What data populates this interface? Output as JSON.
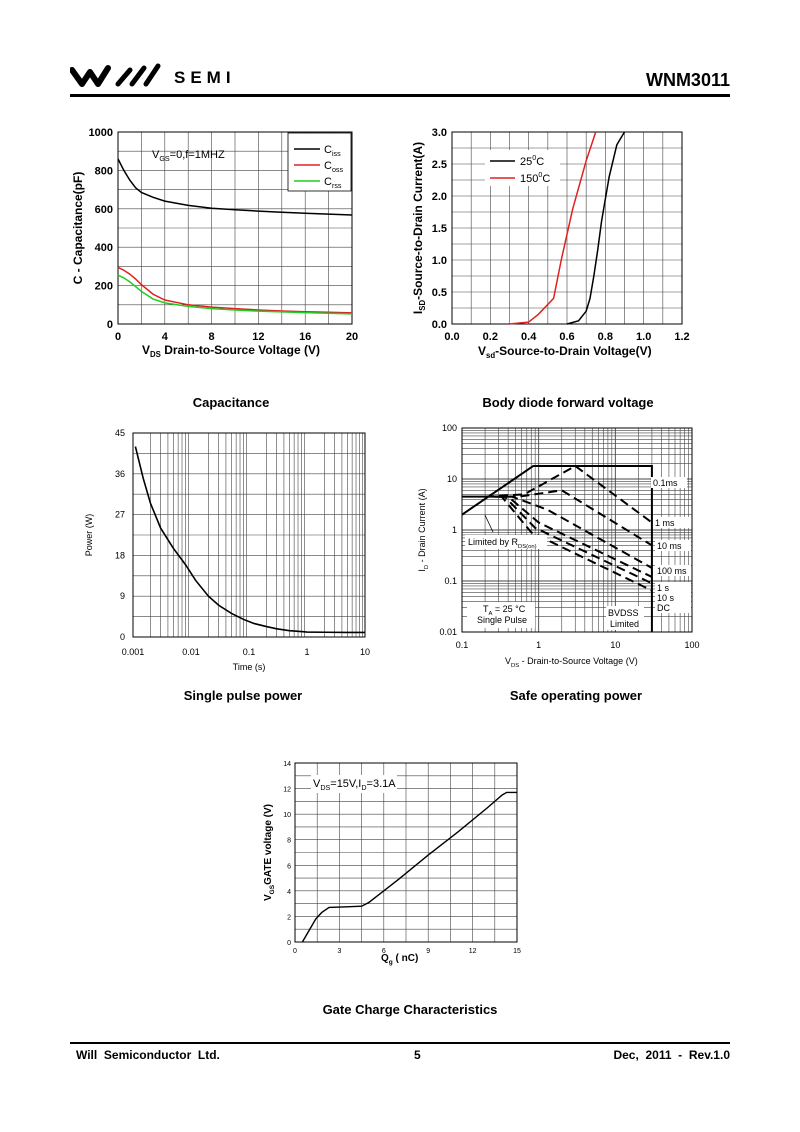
{
  "header": {
    "logo_text": "SEMI",
    "part_number": "WNM3011"
  },
  "footer": {
    "company": "Will  Semiconductor  Ltd.",
    "page": "5",
    "date_rev": "Dec,  2011  -  Rev.1.0"
  },
  "chart_data": [
    {
      "id": "capacitance",
      "type": "line",
      "caption": "Capacitance",
      "xlabel": "VDS Drain-to-Source Voltage (V)",
      "xlabel_main": "V",
      "xlabel_sub": "DS",
      "xlabel_rest": " Drain-to-Source Voltage (V)",
      "ylabel": "C - Capacitance(pF)",
      "xlim": [
        0,
        20
      ],
      "ylim": [
        0,
        1000
      ],
      "xticks": [
        0,
        4,
        8,
        12,
        16,
        20
      ],
      "yticks": [
        0,
        200,
        400,
        600,
        800,
        1000
      ],
      "annotation": "VGS=0,f=1MHZ",
      "annotation_main": "V",
      "annotation_sub": "GS",
      "annotation_rest": "=0,f=1MHZ",
      "series": [
        {
          "name": "Ciss",
          "name_main": "C",
          "name_sub": "iss",
          "color": "#000000",
          "x": [
            0,
            0.5,
            1,
            1.5,
            2,
            3,
            4,
            6,
            8,
            10,
            12,
            14,
            16,
            18,
            20
          ],
          "y": [
            860,
            800,
            750,
            710,
            685,
            660,
            640,
            618,
            603,
            595,
            588,
            582,
            577,
            572,
            568
          ]
        },
        {
          "name": "Coss",
          "name_main": "C",
          "name_sub": "oss",
          "color": "#e02020",
          "x": [
            0,
            0.5,
            1,
            1.5,
            2,
            3,
            4,
            6,
            8,
            10,
            12,
            14,
            16,
            18,
            20
          ],
          "y": [
            295,
            280,
            260,
            235,
            205,
            155,
            125,
            100,
            88,
            80,
            73,
            68,
            64,
            61,
            58
          ]
        },
        {
          "name": "Crss",
          "name_main": "C",
          "name_sub": "rss",
          "color": "#22cc22",
          "x": [
            0,
            0.5,
            1,
            1.5,
            2,
            3,
            4,
            6,
            8,
            10,
            12,
            14,
            16,
            18,
            20
          ],
          "y": [
            255,
            240,
            220,
            195,
            170,
            130,
            110,
            92,
            80,
            73,
            67,
            63,
            59,
            56,
            53
          ]
        }
      ]
    },
    {
      "id": "body-diode",
      "type": "line",
      "caption": "Body diode forward voltage",
      "xlabel": "Vsd-Source-to-Drain Voltage(V)",
      "xlabel_main": "V",
      "xlabel_sub": "sd",
      "xlabel_rest": "-Source-to-Drain Voltage(V)",
      "ylabel": "ISD-Source-to-Drain Current(A)",
      "ylabel_main": "I",
      "ylabel_sub": "SD",
      "ylabel_rest": "-Source-to-Drain Current(A)",
      "xlim": [
        0,
        1.2
      ],
      "ylim": [
        0,
        3.0
      ],
      "xticks": [
        0.0,
        0.2,
        0.4,
        0.6,
        0.8,
        1.0,
        1.2
      ],
      "xtick_labels": [
        "0.0",
        "0.2",
        "0.4",
        "0.6",
        "0.8",
        "1.0",
        "1.2"
      ],
      "yticks": [
        0.0,
        0.5,
        1.0,
        1.5,
        2.0,
        2.5,
        3.0
      ],
      "ytick_labels": [
        "0.0",
        "0.5",
        "1.0",
        "1.5",
        "2.0",
        "2.5",
        "3.0"
      ],
      "series": [
        {
          "name": "25°C",
          "name_main": "25",
          "name_sup": "0",
          "name_rest": "C",
          "color": "#000000",
          "x": [
            0.6,
            0.66,
            0.7,
            0.72,
            0.74,
            0.76,
            0.78,
            0.82,
            0.86,
            0.9
          ],
          "y": [
            0,
            0.05,
            0.2,
            0.4,
            0.75,
            1.15,
            1.6,
            2.3,
            2.8,
            3.0
          ]
        },
        {
          "name": "150°C",
          "name_main": "150",
          "name_sup": "0",
          "name_rest": "C",
          "color": "#e02020",
          "x": [
            0.3,
            0.4,
            0.45,
            0.53,
            0.57,
            0.63,
            0.7,
            0.75
          ],
          "y": [
            0,
            0.03,
            0.15,
            0.4,
            1.0,
            1.8,
            2.55,
            3.0
          ]
        }
      ]
    },
    {
      "id": "single-pulse-power",
      "type": "line",
      "caption": "Single pulse power",
      "xlabel": "Time (s)",
      "ylabel": "Power  (W)",
      "xscale": "log",
      "xlim": [
        0.001,
        10
      ],
      "ylim": [
        0,
        45
      ],
      "xticks": [
        0.001,
        0.01,
        0.1,
        1,
        10
      ],
      "xtick_labels": [
        "0.001",
        "0.01",
        "0.1",
        "1",
        "10"
      ],
      "yticks": [
        0,
        9,
        18,
        27,
        36,
        45
      ],
      "series": [
        {
          "name": "Power",
          "color": "#000000",
          "x": [
            0.0011,
            0.0015,
            0.002,
            0.003,
            0.005,
            0.008,
            0.012,
            0.02,
            0.03,
            0.05,
            0.08,
            0.12,
            0.2,
            0.3,
            0.5,
            0.8,
            1,
            2,
            5,
            10
          ],
          "y": [
            42,
            35,
            29.5,
            24,
            19.5,
            16,
            12.5,
            9,
            7,
            5.2,
            3.9,
            3.0,
            2.3,
            1.8,
            1.4,
            1.2,
            1.1,
            1.05,
            1.0,
            1.0
          ]
        }
      ]
    },
    {
      "id": "safe-operating-area",
      "type": "line",
      "caption": "Safe operating power",
      "xlabel": "VDS - Drain-to-Source Voltage (V)",
      "xlabel_main": "V",
      "xlabel_sub": "DS",
      "xlabel_rest": " - Drain-to-Source Voltage (V)",
      "ylabel": "ID - Drain Current (A)",
      "ylabel_main": "I",
      "ylabel_sub": "D",
      "ylabel_rest": " - Drain Current (A)",
      "xscale": "log",
      "yscale": "log",
      "xlim": [
        0.1,
        100
      ],
      "ylim": [
        0.01,
        100
      ],
      "xticks": [
        0.1,
        1,
        10,
        100
      ],
      "xtick_labels": [
        "0.1",
        "1",
        "10",
        "100"
      ],
      "yticks": [
        0.01,
        0.1,
        1,
        10,
        100
      ],
      "ytick_labels": [
        "0.01",
        "0.1",
        "1",
        "10",
        "100"
      ],
      "annotations": {
        "limited_by": "Limited by RDS(on)",
        "limited_main": "Limited by R",
        "limited_sub": "DS(on)",
        "ta_main": "T",
        "ta_sub": "A",
        "ta_rest": " = 25 °C",
        "ta": "TA = 25 °C",
        "single_pulse": "Single Pulse",
        "bvdss": "BVDSS",
        "bvdss_limited": "Limited"
      },
      "series": [
        {
          "name": "0.1ms",
          "style": "solid",
          "x": [
            0.1,
            0.85,
            30,
            30
          ],
          "y": [
            2,
            18,
            18,
            0.01
          ]
        },
        {
          "name": "1 ms",
          "style": "dashed",
          "x": [
            0.2,
            0.65,
            3.0,
            30
          ],
          "y": [
            4.5,
            5.0,
            18.0,
            1.4
          ]
        },
        {
          "name": "10 ms",
          "style": "dashed",
          "x": [
            0.25,
            0.55,
            2.0,
            30
          ],
          "y": [
            4.5,
            4.5,
            6.0,
            0.5
          ]
        },
        {
          "name": "100 ms",
          "style": "dashed",
          "x": [
            0.27,
            0.45,
            1.3,
            30
          ],
          "y": [
            4.5,
            4.5,
            2.5,
            0.18
          ]
        },
        {
          "name": "1 s",
          "style": "dashed",
          "x": [
            0.3,
            0.4,
            1.0,
            30
          ],
          "y": [
            4.5,
            4.5,
            1.4,
            0.12
          ]
        },
        {
          "name": "10 s",
          "style": "dashed",
          "x": [
            0.3,
            0.36,
            0.9,
            30
          ],
          "y": [
            4.5,
            4.5,
            1.1,
            0.09
          ]
        },
        {
          "name": "DC",
          "style": "dashed",
          "x": [
            0.3,
            0.33,
            0.8,
            30
          ],
          "y": [
            4.5,
            4.5,
            0.9,
            0.065
          ]
        },
        {
          "name": "Limited by RDS(on)",
          "style": "solid",
          "x": [
            0.1,
            0.32
          ],
          "y": [
            4.5,
            4.5
          ]
        }
      ]
    },
    {
      "id": "gate-charge",
      "type": "line",
      "caption": "Gate Charge Characteristics",
      "xlabel": "Qg ( nC)",
      "xlabel_main": "Q",
      "xlabel_sub": "g",
      "xlabel_rest": " (  nC)",
      "ylabel": "VGSGATE voltage (V)",
      "ylabel_main": "V",
      "ylabel_sub": "GS",
      "ylabel_rest": "GATE voltage (V)",
      "xlim": [
        0,
        15
      ],
      "ylim": [
        0,
        14
      ],
      "xticks": [
        0,
        3,
        6,
        9,
        12,
        15
      ],
      "yticks": [
        0,
        2,
        4,
        6,
        8,
        10,
        12,
        14
      ],
      "annotation": "VDS=15V,ID=3.1A",
      "annotation_main": "V",
      "annotation_sub": "DS",
      "annotation_mid": "=15V,I",
      "annotation_sub2": "D",
      "annotation_rest": "=3.1A",
      "series": [
        {
          "name": "VGS",
          "color": "#000000",
          "x": [
            0.5,
            1.0,
            1.4,
            1.8,
            2.3,
            3.5,
            4.5,
            5.0,
            7.0,
            9.0,
            11.0,
            13.0,
            14.0,
            14.3,
            15.0
          ],
          "y": [
            0,
            1.0,
            1.8,
            2.3,
            2.7,
            2.75,
            2.8,
            3.1,
            4.9,
            6.8,
            8.6,
            10.5,
            11.5,
            11.7,
            11.7
          ]
        }
      ]
    }
  ]
}
